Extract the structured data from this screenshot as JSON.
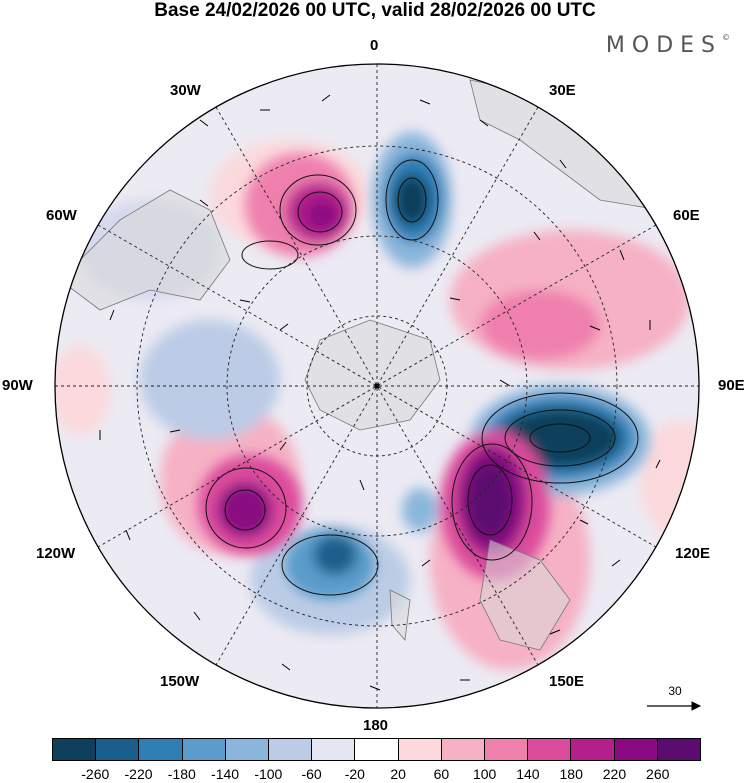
{
  "title": "Base 24/02/2026 00 UTC, valid 28/02/2026 00 UTC",
  "brand": "MODES",
  "brand_mark": "©",
  "longitude_labels": {
    "top": "0",
    "top_right": "30E",
    "right_upper": "60E",
    "right": "90E",
    "right_lower": "120E",
    "bottom_right": "150E",
    "bottom": "180",
    "bottom_left": "150W",
    "left_lower": "120W",
    "left": "90W",
    "left_upper": "60W",
    "top_left": "30W"
  },
  "vector_reference": "30",
  "colorbar": {
    "colors": [
      "#0e3f5c",
      "#1a5e8d",
      "#2f7fb6",
      "#5a9ccb",
      "#8bb6dc",
      "#bccce6",
      "#e4e6f2",
      "#ffffff",
      "#fbd9dc",
      "#f6b1c4",
      "#ef80ae",
      "#dc4c9c",
      "#b41f8c",
      "#8b0a82",
      "#5c0b70"
    ],
    "ticks": [
      "-260",
      "-220",
      "-180",
      "-140",
      "-100",
      "-60",
      "-20",
      "20",
      "60",
      "100",
      "140",
      "180",
      "220",
      "260"
    ]
  }
}
